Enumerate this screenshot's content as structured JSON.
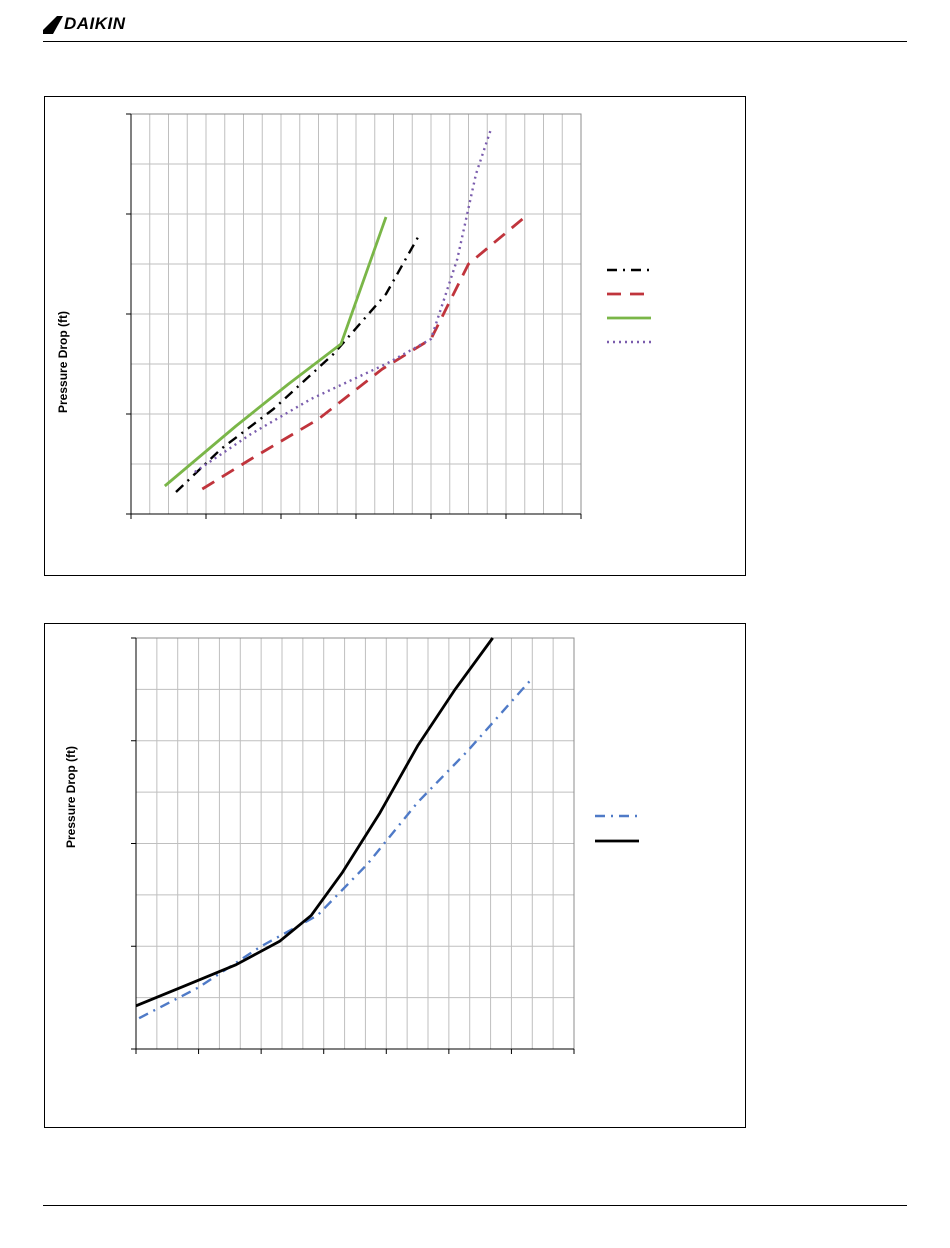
{
  "header": {
    "brand": "DAIKIN"
  },
  "chart_data": [
    {
      "type": "line",
      "title": "",
      "xlabel": "",
      "ylabel": "Pressure Drop  (ft)",
      "grid": true,
      "legend_position": "right",
      "xlim": [
        0,
        6
      ],
      "ylim": [
        0,
        4
      ],
      "x_major_ticks": 6,
      "x_minor_per_major": 4,
      "y_major_ticks": 4,
      "y_minor_per_major": 2,
      "series": [
        {
          "style": "dash-dot",
          "color": "#000000",
          "x": [
            0.6,
            1.2,
            1.9,
            2.7,
            3.4,
            3.85
          ],
          "y": [
            0.22,
            0.65,
            1.05,
            1.6,
            2.2,
            2.8
          ]
        },
        {
          "style": "dashed",
          "color": "#c0343c",
          "x": [
            0.95,
            1.6,
            2.5,
            3.35,
            4.0,
            4.5,
            5.3
          ],
          "y": [
            0.25,
            0.55,
            0.95,
            1.45,
            1.75,
            2.5,
            3.0
          ]
        },
        {
          "style": "solid",
          "color": "#7ab648",
          "x": [
            0.45,
            1.4,
            2.1,
            2.8,
            3.4
          ],
          "y": [
            0.28,
            0.88,
            1.3,
            1.7,
            2.97
          ]
        },
        {
          "style": "dotted",
          "color": "#7a5cad",
          "x": [
            0.85,
            1.6,
            2.4,
            3.4,
            4.0,
            4.35,
            4.6,
            4.8
          ],
          "y": [
            0.42,
            0.8,
            1.15,
            1.5,
            1.75,
            2.55,
            3.4,
            3.85
          ]
        }
      ]
    },
    {
      "type": "line",
      "title": "",
      "xlabel": "",
      "ylabel": "Pressure Drop  (ft)",
      "grid": true,
      "legend_position": "right",
      "xlim": [
        0,
        7
      ],
      "ylim": [
        0,
        4
      ],
      "x_major_ticks": 7,
      "x_minor_per_major": 3,
      "y_major_ticks": 4,
      "y_minor_per_major": 2,
      "series": [
        {
          "style": "dash-dot",
          "color": "#4f7ac7",
          "x": [
            0.05,
            1.0,
            2.0,
            2.9,
            3.7,
            4.5,
            5.3,
            6.35
          ],
          "y": [
            0.3,
            0.6,
            1.0,
            1.3,
            1.8,
            2.4,
            2.9,
            3.62
          ]
        },
        {
          "style": "solid",
          "color": "#000000",
          "x": [
            0.0,
            0.8,
            1.6,
            2.3,
            2.8,
            3.3,
            3.9,
            4.5,
            5.1,
            5.7
          ],
          "y": [
            0.42,
            0.62,
            0.82,
            1.05,
            1.3,
            1.72,
            2.3,
            2.95,
            3.5,
            4.0
          ]
        }
      ]
    }
  ]
}
